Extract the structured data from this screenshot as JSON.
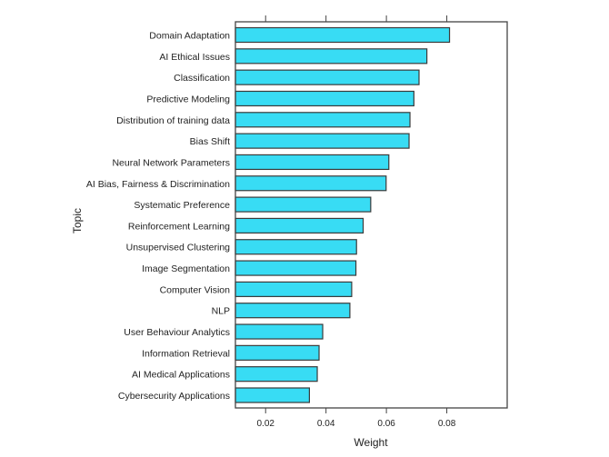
{
  "chart_data": {
    "type": "bar",
    "orientation": "horizontal",
    "title": "",
    "xlabel": "Weight",
    "ylabel": "Topic",
    "xlim": [
      0.01,
      0.1
    ],
    "xticks": [
      0.02,
      0.04,
      0.06,
      0.08
    ],
    "xtick_labels": [
      "0.02",
      "0.04",
      "0.06",
      "0.08"
    ],
    "grid": false,
    "categories": [
      "Domain Adaptation",
      "AI Ethical Issues",
      "Classification",
      "Predictive Modeling",
      "Distribution of training data",
      "Bias Shift",
      "Neural Network Parameters",
      "AI Bias, Fairness & Discrimination",
      "Systematic Preference",
      "Reinforcement Learning",
      "Unsupervised Clustering",
      "Image Segmentation",
      "Computer Vision",
      "NLP",
      "User Behaviour Analytics",
      "Information Retrieval",
      "AI Medical Applications",
      "Cybersecurity Applications"
    ],
    "values": [
      0.0809,
      0.0734,
      0.0708,
      0.0691,
      0.0678,
      0.0675,
      0.0608,
      0.0599,
      0.0548,
      0.0523,
      0.0501,
      0.0499,
      0.0485,
      0.0479,
      0.0389,
      0.0377,
      0.0371,
      0.0345
    ],
    "colors": {
      "bar_fill": "#38dcf4",
      "bar_stroke": "#3a3a3a",
      "axis": "#444444"
    }
  }
}
